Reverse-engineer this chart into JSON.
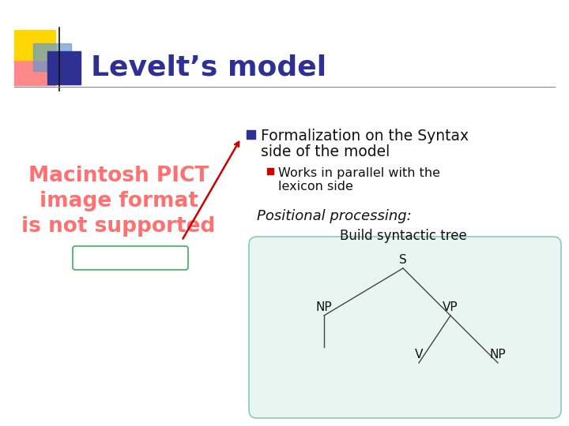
{
  "title": "Levelt’s model",
  "title_color": "#2E3192",
  "title_fontsize": 26,
  "bg_color": "#FFFFFF",
  "bullet1_line1": "Formalization on the Syntax",
  "bullet1_line2": "side of the model",
  "bullet2_line1": "Works in parallel with the",
  "bullet2_line2": "lexicon side",
  "italic_text": "Positional processing:",
  "build_text": "Build syntactic tree",
  "box_color": "#e8f5f0",
  "box_edge_color": "#90c8bc",
  "bullet_marker_color1": "#2E3192",
  "bullet_marker_color2": "#CC0000",
  "macpict_color": "#FF7070",
  "arrow_color": "#CC0000",
  "line_color": "#333333",
  "deco_yellow": "#FFD700",
  "deco_blue": "#2E3192",
  "deco_pink": "#FF8888",
  "deco_bluegrad": "#6699CC"
}
